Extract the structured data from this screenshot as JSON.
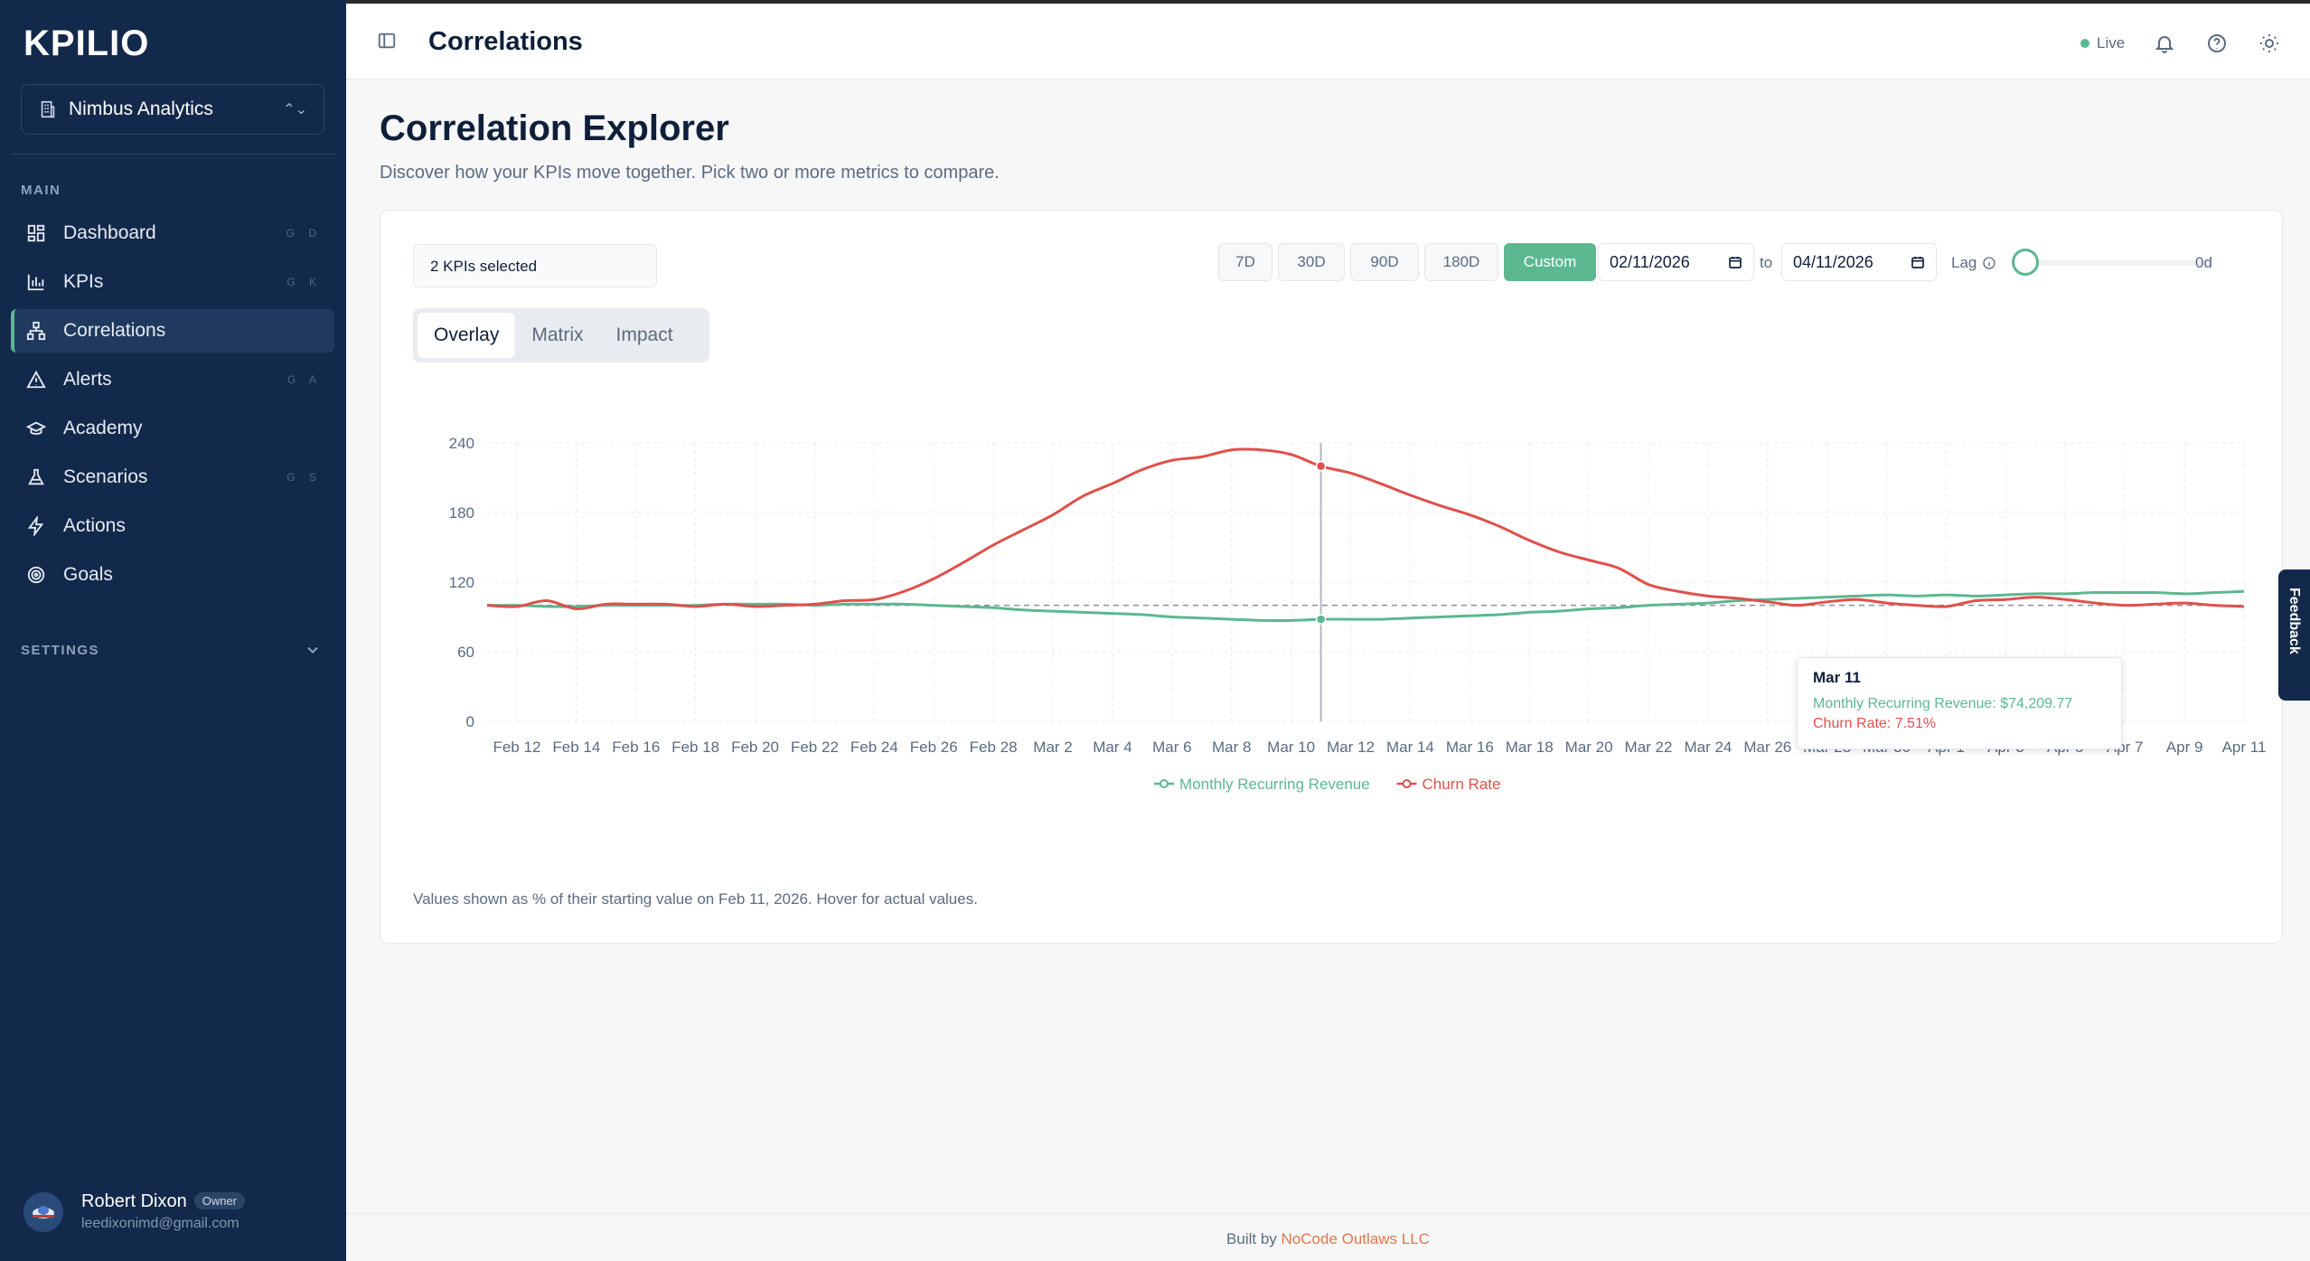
{
  "brand": {
    "logo": "KPILIO"
  },
  "org": {
    "name": "Nimbus Analytics"
  },
  "sidebar": {
    "main_label": "MAIN",
    "settings_label": "SETTINGS",
    "items": [
      {
        "label": "Dashboard",
        "shortcut": "G D"
      },
      {
        "label": "KPIs",
        "shortcut": "G K"
      },
      {
        "label": "Correlations",
        "shortcut": ""
      },
      {
        "label": "Alerts",
        "shortcut": "G A"
      },
      {
        "label": "Academy",
        "shortcut": ""
      },
      {
        "label": "Scenarios",
        "shortcut": "G S"
      },
      {
        "label": "Actions",
        "shortcut": ""
      },
      {
        "label": "Goals",
        "shortcut": ""
      }
    ]
  },
  "user": {
    "name": "Robert Dixon",
    "role": "Owner",
    "email": "leedixonimd@gmail.com"
  },
  "topbar": {
    "title": "Correlations",
    "live_label": "Live"
  },
  "page": {
    "title": "Correlation Explorer",
    "subtitle": "Discover how your KPIs move together. Pick two or more metrics to compare."
  },
  "controls": {
    "kpi_selector": "2 KPIs selected",
    "ranges": [
      "7D",
      "30D",
      "90D",
      "180D",
      "Custom"
    ],
    "active_range": "Custom",
    "date_from": "02/11/2026",
    "to_label": "to",
    "date_to": "04/11/2026",
    "lag_label": "Lag",
    "lag_value": "0d",
    "lag_fraction": 0
  },
  "tabs": [
    "Overlay",
    "Matrix",
    "Impact"
  ],
  "active_tab": "Overlay",
  "note": "Values shown as % of their starting value on Feb 11, 2026. Hover for actual values.",
  "tooltip": {
    "date": "Mar 11",
    "mrr": "Monthly Recurring Revenue: $74,209.77",
    "churn": "Churn Rate: 7.51%"
  },
  "footer": {
    "prefix": "Built by",
    "company": "NoCode Outlaws LLC"
  },
  "feedback": {
    "label": "Feedback"
  },
  "colors": {
    "accent": "#5bb891",
    "churn": "#e0504b",
    "sidebar": "#13294b"
  },
  "chart_data": {
    "type": "line",
    "ylim": [
      0,
      240
    ],
    "yticks": [
      0,
      60,
      120,
      180,
      240
    ],
    "x": [
      "Feb 11",
      "Feb 12",
      "Feb 13",
      "Feb 14",
      "Feb 15",
      "Feb 16",
      "Feb 17",
      "Feb 18",
      "Feb 19",
      "Feb 20",
      "Feb 21",
      "Feb 22",
      "Feb 23",
      "Feb 24",
      "Feb 25",
      "Feb 26",
      "Feb 27",
      "Feb 28",
      "Mar 1",
      "Mar 2",
      "Mar 3",
      "Mar 4",
      "Mar 5",
      "Mar 6",
      "Mar 7",
      "Mar 8",
      "Mar 9",
      "Mar 10",
      "Mar 11",
      "Mar 12",
      "Mar 13",
      "Mar 14",
      "Mar 15",
      "Mar 16",
      "Mar 17",
      "Mar 18",
      "Mar 19",
      "Mar 20",
      "Mar 21",
      "Mar 22",
      "Mar 23",
      "Mar 24",
      "Mar 25",
      "Mar 26",
      "Mar 27",
      "Mar 28",
      "Mar 29",
      "Mar 30",
      "Mar 31",
      "Apr 1",
      "Apr 2",
      "Apr 3",
      "Apr 4",
      "Apr 5",
      "Apr 6",
      "Apr 7",
      "Apr 8",
      "Apr 9",
      "Apr 10",
      "Apr 11"
    ],
    "xtick_labels": [
      "Feb 12",
      "Feb 14",
      "Feb 16",
      "Feb 18",
      "Feb 20",
      "Feb 22",
      "Feb 24",
      "Feb 26",
      "Feb 28",
      "Mar 2",
      "Mar 4",
      "Mar 6",
      "Mar 8",
      "Mar 10",
      "Mar 12",
      "Mar 14",
      "Mar 16",
      "Mar 18",
      "Mar 20",
      "Mar 22",
      "Mar 24",
      "Mar 26",
      "Mar 28",
      "Mar 30",
      "Apr 1",
      "Apr 3",
      "Apr 5",
      "Apr 7",
      "Apr 9",
      "Apr 11"
    ],
    "baseline": 100,
    "highlight_x": "Mar 11",
    "series": [
      {
        "name": "Monthly Recurring Revenue",
        "color": "#5bb891",
        "values": [
          100,
          100,
          99,
          99,
          100,
          100,
          100,
          100,
          101,
          101,
          101,
          100,
          101,
          101,
          101,
          100,
          99,
          98,
          96,
          95,
          94,
          93,
          92,
          90,
          89,
          88,
          87,
          87,
          88,
          88,
          88,
          89,
          90,
          91,
          92,
          94,
          95,
          97,
          98,
          100,
          101,
          102,
          104,
          105,
          106,
          107,
          108,
          109,
          108,
          109,
          108,
          109,
          110,
          110,
          111,
          111,
          111,
          110,
          111,
          112
        ]
      },
      {
        "name": "Churn Rate",
        "color": "#e0504b",
        "values": [
          100,
          99,
          104,
          97,
          101,
          101,
          101,
          99,
          101,
          99,
          100,
          101,
          104,
          105,
          112,
          123,
          137,
          152,
          165,
          178,
          194,
          205,
          217,
          225,
          228,
          234,
          234,
          230,
          220,
          214,
          205,
          195,
          186,
          178,
          168,
          156,
          146,
          139,
          132,
          118,
          112,
          108,
          106,
          103,
          100,
          103,
          105,
          102,
          100,
          99,
          104,
          105,
          107,
          105,
          102,
          100,
          101,
          102,
          100,
          99
        ]
      }
    ],
    "legend_position": "bottom",
    "grid": true
  }
}
